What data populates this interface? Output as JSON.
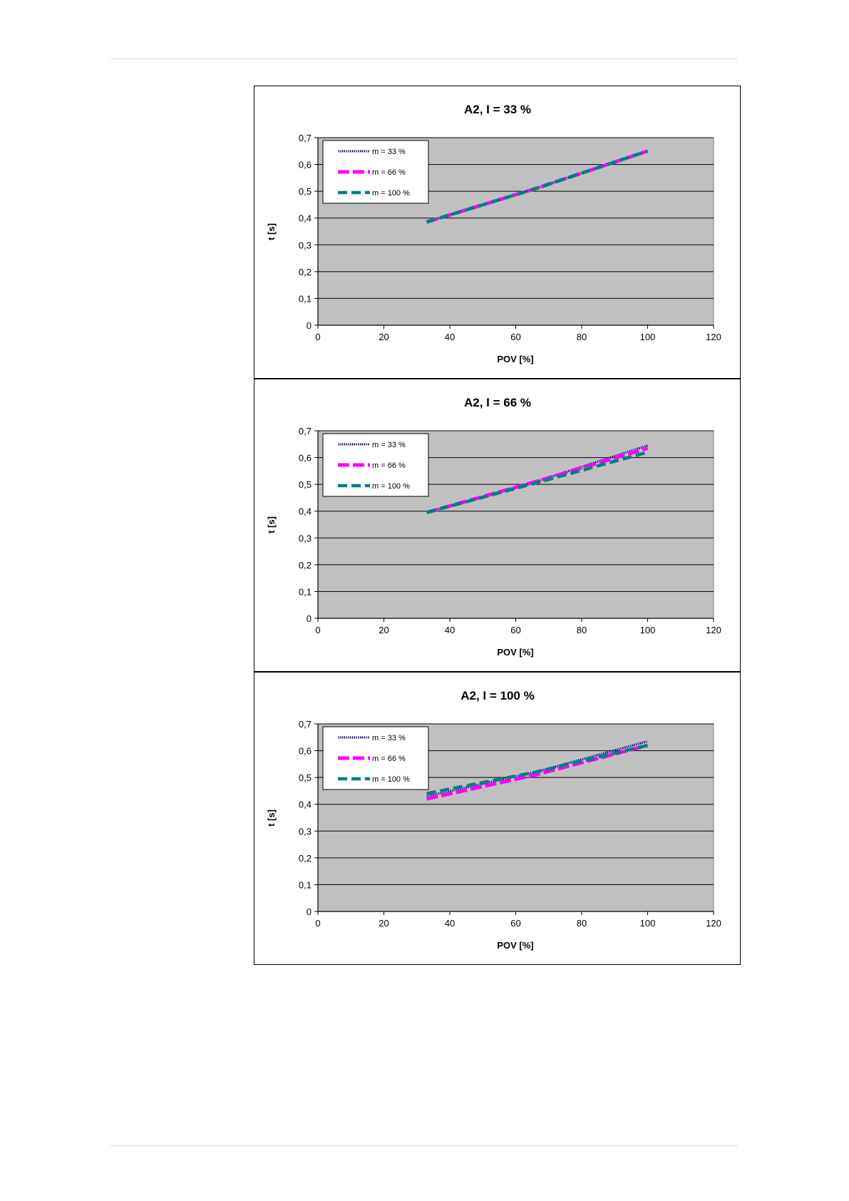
{
  "chart_data": [
    {
      "type": "line",
      "title": "A2, I = 33 %",
      "xlabel": "POV [%]",
      "ylabel": "t [s]",
      "xlim": [
        0,
        120
      ],
      "ylim": [
        0,
        0.7
      ],
      "x_ticks": [
        "0",
        "20",
        "40",
        "60",
        "80",
        "100",
        "120"
      ],
      "y_ticks": [
        "0",
        "0,1",
        "0,2",
        "0,3",
        "0,4",
        "0,5",
        "0,6",
        "0,7"
      ],
      "grid": "horizontal",
      "legend_position": "top-left",
      "series": [
        {
          "name": "m = 33 %",
          "color": "#000080",
          "x": [
            33,
            66,
            100
          ],
          "y": [
            0.385,
            0.51,
            0.65
          ]
        },
        {
          "name": "m = 66 %",
          "color": "#ff00ff",
          "x": [
            33,
            66,
            100
          ],
          "y": [
            0.385,
            0.51,
            0.65
          ]
        },
        {
          "name": "m = 100 %",
          "color": "#008080",
          "x": [
            33,
            66,
            100
          ],
          "y": [
            0.385,
            0.51,
            0.65
          ]
        }
      ]
    },
    {
      "type": "line",
      "title": "A2, I = 66 %",
      "xlabel": "POV [%]",
      "ylabel": "t [s]",
      "xlim": [
        0,
        120
      ],
      "ylim": [
        0,
        0.7
      ],
      "x_ticks": [
        "0",
        "20",
        "40",
        "60",
        "80",
        "100",
        "120"
      ],
      "y_ticks": [
        "0",
        "0,1",
        "0,2",
        "0,3",
        "0,4",
        "0,5",
        "0,6",
        "0,7"
      ],
      "grid": "horizontal",
      "legend_position": "top-left",
      "series": [
        {
          "name": "m = 33 %",
          "color": "#000080",
          "x": [
            33,
            66,
            100
          ],
          "y": [
            0.395,
            0.51,
            0.645
          ]
        },
        {
          "name": "m = 66 %",
          "color": "#ff00ff",
          "x": [
            33,
            66,
            100
          ],
          "y": [
            0.395,
            0.51,
            0.635
          ]
        },
        {
          "name": "m = 100 %",
          "color": "#008080",
          "x": [
            33,
            66,
            100
          ],
          "y": [
            0.395,
            0.505,
            0.62
          ]
        }
      ]
    },
    {
      "type": "line",
      "title": "A2, I = 100 %",
      "xlabel": "POV [%]",
      "ylabel": "t [s]",
      "xlim": [
        0,
        120
      ],
      "ylim": [
        0,
        0.7
      ],
      "x_ticks": [
        "0",
        "20",
        "40",
        "60",
        "80",
        "100",
        "120"
      ],
      "y_ticks": [
        "0",
        "0,1",
        "0,2",
        "0,3",
        "0,4",
        "0,5",
        "0,6",
        "0,7"
      ],
      "grid": "horizontal",
      "legend_position": "top-left",
      "series": [
        {
          "name": "m = 33 %",
          "color": "#000080",
          "x": [
            33,
            66,
            100
          ],
          "y": [
            0.43,
            0.52,
            0.635
          ]
        },
        {
          "name": "m = 66 %",
          "color": "#ff00ff",
          "x": [
            33,
            66,
            100
          ],
          "y": [
            0.42,
            0.51,
            0.62
          ]
        },
        {
          "name": "m = 100 %",
          "color": "#008080",
          "x": [
            33,
            66,
            100
          ],
          "y": [
            0.44,
            0.52,
            0.62
          ]
        }
      ]
    }
  ]
}
